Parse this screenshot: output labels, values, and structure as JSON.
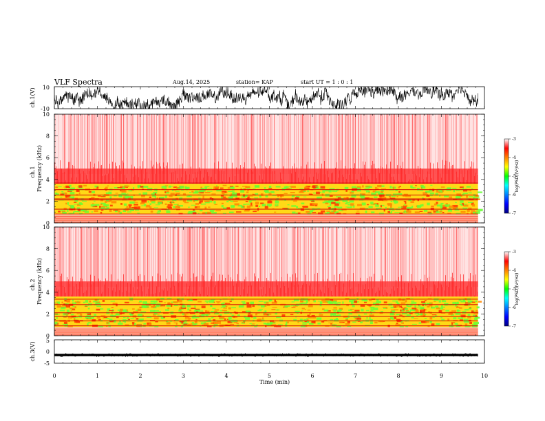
{
  "header": {
    "title": "VLF Spectra",
    "date": "Aug.14, 2025",
    "station": "station= KAP",
    "start_ut": "start UT =  1 : 0  : 1"
  },
  "chart_data": [
    {
      "type": "line",
      "id": "ch1-waveform",
      "ylabel": "ch.1(V)",
      "ylim": [
        -10,
        10
      ],
      "yticks": [
        "10",
        "-10"
      ],
      "xlim": [
        0,
        10
      ],
      "color": "#000000"
    },
    {
      "type": "heatmap",
      "id": "ch1-spectrogram",
      "ylabel_top": "ch.1",
      "ylabel": "Frequency (kHz)",
      "ylim": [
        0,
        10
      ],
      "yticks": [
        "0",
        "2",
        "4",
        "6",
        "8",
        "10"
      ],
      "xlim": [
        0,
        9.85
      ],
      "colorbar": {
        "label": "log(PSD)(V²/Hz)",
        "range": [
          -7,
          -3
        ],
        "ticks": [
          "-3",
          "-4",
          "-5",
          "-6",
          "-7"
        ]
      }
    },
    {
      "type": "heatmap",
      "id": "ch2-spectrogram",
      "ylabel_top": "ch.2",
      "ylabel": "Frequency (kHz)",
      "ylim": [
        0,
        10
      ],
      "yticks": [
        "0",
        "2",
        "4",
        "6",
        "8",
        "10"
      ],
      "xlim": [
        0,
        9.85
      ],
      "colorbar": {
        "label": "log(PSD)(V²/Hz)",
        "range": [
          -7,
          -3
        ],
        "ticks": [
          "-3",
          "-4",
          "-5",
          "-6",
          "-7"
        ]
      }
    },
    {
      "type": "line",
      "id": "ch3-waveform",
      "ylabel": "ch.3(V)",
      "ylim": [
        -5,
        5
      ],
      "yticks": [
        "5",
        "0",
        "-5"
      ],
      "xlim": [
        0,
        10
      ],
      "color": "#000000"
    }
  ],
  "xaxis": {
    "label": "Time (min)",
    "range": [
      0,
      10
    ],
    "ticks": [
      "0",
      "1",
      "2",
      "3",
      "4",
      "5",
      "6",
      "7",
      "8",
      "9",
      "10"
    ]
  },
  "colors": {
    "jet_low": "#000080",
    "mid": "#00ff00",
    "high": "#ff0000"
  }
}
